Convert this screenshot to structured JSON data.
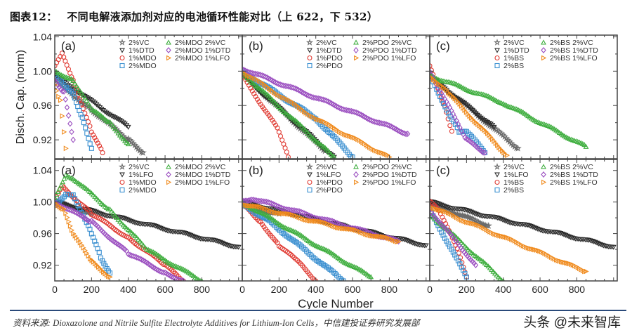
{
  "title": {
    "label": "图表12：",
    "text": "不同电解液添加剂对应的电池循环性能对比（上 622，下 532）"
  },
  "source": "资料来源: Dioxazolone and Nitrile Sulfite Electrolyte Additives for Lithium-Ion Cells，中信建投证券研究发展部",
  "watermark": "头条 @未来智库",
  "colors": {
    "VC": "#6a6a6a",
    "DTD_LFO": "#2b2b2b",
    "one_pct": "#e03a32",
    "two_pct": "#3a8fd0",
    "plus_VC": "#3fae3f",
    "plus_DTD": "#9b4fc0",
    "plus_LFO": "#f08a1c"
  },
  "chart_data": [
    {
      "type": "scatter",
      "panel": "(a)",
      "row": "top",
      "ylabel": "Disch. Cap. (norm)",
      "xlim": [
        0,
        1020
      ],
      "ylim": [
        0.898,
        1.042
      ],
      "yticks": [
        "1.04",
        "1.00",
        "0.96",
        "0.92"
      ],
      "series": [
        {
          "name": "2%VC",
          "marker": "star",
          "color": "#6a6a6a",
          "points": [
            [
              0,
              0.99
            ],
            [
              200,
              0.955
            ],
            [
              400,
              0.92
            ],
            [
              480,
              0.905
            ]
          ]
        },
        {
          "name": "1%DTD",
          "marker": "tri-down",
          "color": "#2b2b2b",
          "points": [
            [
              0,
              0.995
            ],
            [
              400,
              0.935
            ]
          ]
        },
        {
          "name": "1%MDO",
          "marker": "circle",
          "color": "#e03a32",
          "points": [
            [
              0,
              1.005
            ],
            [
              40,
              1.02
            ],
            [
              100,
              0.99
            ],
            [
              200,
              0.93
            ],
            [
              260,
              0.905
            ]
          ]
        },
        {
          "name": "2%MDO",
          "marker": "square",
          "color": "#3a8fd0",
          "points": [
            [
              0,
              0.995
            ],
            [
              100,
              0.975
            ],
            [
              150,
              0.945
            ],
            [
              200,
              0.91
            ]
          ]
        },
        {
          "name": "2%MDO 2%VC",
          "marker": "tri-up",
          "color": "#3fae3f",
          "points": [
            [
              0,
              1.0
            ],
            [
              100,
              0.99
            ],
            [
              200,
              0.955
            ],
            [
              300,
              0.94
            ],
            [
              400,
              0.915
            ]
          ]
        },
        {
          "name": "2%MDO 1%DTD",
          "marker": "diamond",
          "color": "#9b4fc0",
          "points": [
            [
              0,
              0.99
            ],
            [
              50,
              0.975
            ],
            [
              100,
              0.92
            ]
          ]
        },
        {
          "name": "2%MDO 1%LFO",
          "marker": "tri-right",
          "color": "#f08a1c",
          "points": [
            [
              0,
              0.985
            ],
            [
              30,
              0.965
            ],
            [
              60,
              0.91
            ]
          ]
        }
      ]
    },
    {
      "type": "scatter",
      "panel": "(b)",
      "row": "top",
      "xlim": [
        0,
        1020
      ],
      "ylim": [
        0.898,
        1.042
      ],
      "series": [
        {
          "name": "2%VC",
          "marker": "star",
          "color": "#6a6a6a",
          "points": [
            [
              0,
              0.997
            ],
            [
              450,
              0.907
            ]
          ]
        },
        {
          "name": "1%DTD",
          "marker": "tri-down",
          "color": "#2b2b2b",
          "points": [
            [
              0,
              0.995
            ],
            [
              500,
              0.9
            ]
          ]
        },
        {
          "name": "1%PDO",
          "marker": "circle",
          "color": "#e03a32",
          "points": [
            [
              0,
              0.995
            ],
            [
              200,
              0.93
            ],
            [
              250,
              0.9
            ]
          ]
        },
        {
          "name": "2%PDO",
          "marker": "square",
          "color": "#3a8fd0",
          "points": [
            [
              0,
              1.0
            ],
            [
              400,
              0.945
            ],
            [
              600,
              0.9
            ]
          ]
        },
        {
          "name": "2%PDO 2%VC",
          "marker": "tri-up",
          "color": "#3fae3f",
          "points": [
            [
              0,
              0.998
            ],
            [
              450,
              0.91
            ],
            [
              500,
              0.9
            ]
          ]
        },
        {
          "name": "2%PDO 1%DTD",
          "marker": "diamond",
          "color": "#9b4fc0",
          "points": [
            [
              0,
              1.003
            ],
            [
              900,
              0.927
            ]
          ]
        },
        {
          "name": "2%PDO 1%LFO",
          "marker": "tri-right",
          "color": "#f08a1c",
          "points": [
            [
              0,
              1.0
            ],
            [
              400,
              0.945
            ],
            [
              800,
              0.9
            ]
          ]
        }
      ]
    },
    {
      "type": "scatter",
      "panel": "(c)",
      "row": "top",
      "xlim": [
        0,
        1020
      ],
      "ylim": [
        0.898,
        1.042
      ],
      "series": [
        {
          "name": "2%VC",
          "marker": "star",
          "color": "#6a6a6a",
          "points": [
            [
              0,
              0.995
            ],
            [
              480,
              0.91
            ]
          ]
        },
        {
          "name": "1%DTD",
          "marker": "tri-down",
          "color": "#2b2b2b",
          "points": [
            [
              0,
              0.993
            ],
            [
              350,
              0.935
            ]
          ]
        },
        {
          "name": "1%BS",
          "marker": "circle",
          "color": "#e03a32",
          "points": [
            [
              0,
              1.005
            ],
            [
              80,
              0.96
            ],
            [
              120,
              0.93
            ]
          ]
        },
        {
          "name": "2%BS",
          "marker": "square",
          "color": "#3a8fd0",
          "points": [
            [
              0,
              0.995
            ],
            [
              130,
              0.94
            ],
            [
              160,
              0.93
            ],
            [
              200,
              0.93
            ],
            [
              300,
              0.905
            ]
          ]
        },
        {
          "name": "2%BS 2%VC",
          "marker": "tri-up",
          "color": "#3fae3f",
          "points": [
            [
              0,
              0.995
            ],
            [
              400,
              0.963
            ],
            [
              850,
              0.912
            ]
          ]
        },
        {
          "name": "2%BS 1%DTD",
          "marker": "diamond",
          "color": "#9b4fc0",
          "points": [
            [
              0,
              1.0
            ],
            [
              200,
              0.92
            ],
            [
              300,
              0.905
            ]
          ]
        },
        {
          "name": "2%BS 1%LFO",
          "marker": "tri-right",
          "color": "#f08a1c",
          "points": [
            [
              0,
              0.995
            ],
            [
              100,
              0.975
            ],
            [
              420,
              0.902
            ]
          ]
        }
      ]
    },
    {
      "type": "scatter",
      "panel": "(a)",
      "row": "bottom",
      "xlim": [
        0,
        1020
      ],
      "ylim": [
        0.9,
        1.054
      ],
      "yticks": [
        "1.04",
        "1.00",
        "0.96",
        "0.92"
      ],
      "xticks": [
        "0",
        "200",
        "400",
        "600",
        "800"
      ],
      "series": [
        {
          "name": "2%VC",
          "marker": "star",
          "color": "#6a6a6a",
          "points": [
            [
              0,
              1.0
            ],
            [
              200,
              0.985
            ]
          ]
        },
        {
          "name": "1%LFO",
          "marker": "tri-down",
          "color": "#2b2b2b",
          "points": [
            [
              0,
              1.0
            ],
            [
              1000,
              0.943
            ]
          ]
        },
        {
          "name": "1%MDO",
          "marker": "circle",
          "color": "#e03a32",
          "points": [
            [
              0,
              1.0
            ],
            [
              40,
              1.02
            ],
            [
              200,
              0.985
            ],
            [
              400,
              0.955
            ],
            [
              600,
              0.92
            ],
            [
              700,
              0.9
            ]
          ]
        },
        {
          "name": "2%MDO",
          "marker": "square",
          "color": "#3a8fd0",
          "points": [
            [
              0,
              0.995
            ],
            [
              60,
              1.01
            ],
            [
              100,
              1.01
            ],
            [
              200,
              0.96
            ],
            [
              250,
              0.93
            ],
            [
              300,
              0.91
            ]
          ]
        },
        {
          "name": "2%MDO 2%VC",
          "marker": "tri-up",
          "color": "#3fae3f",
          "points": [
            [
              0,
              1.005
            ],
            [
              60,
              1.035
            ],
            [
              100,
              1.03
            ],
            [
              300,
              0.99
            ],
            [
              500,
              0.94
            ],
            [
              800,
              0.9
            ]
          ]
        },
        {
          "name": "2%MDO 1%DTD",
          "marker": "diamond",
          "color": "#9b4fc0",
          "points": [
            [
              0,
              1.0
            ],
            [
              200,
              0.975
            ],
            [
              400,
              0.935
            ],
            [
              600,
              0.91
            ],
            [
              700,
              0.9
            ]
          ]
        },
        {
          "name": "2%MDO 1%LFO",
          "marker": "tri-right",
          "color": "#f08a1c",
          "points": [
            [
              0,
              1.0
            ],
            [
              50,
              0.99
            ],
            [
              100,
              0.96
            ],
            [
              200,
              0.925
            ],
            [
              300,
              0.905
            ]
          ]
        }
      ]
    },
    {
      "type": "scatter",
      "panel": "(b)",
      "row": "bottom",
      "xlim": [
        0,
        1020
      ],
      "ylim": [
        0.9,
        1.054
      ],
      "xticks": [
        "0",
        "200",
        "400",
        "600",
        "800"
      ],
      "series": [
        {
          "name": "2%VC",
          "marker": "star",
          "color": "#6a6a6a",
          "points": [
            [
              0,
              0.995
            ],
            [
              200,
              0.985
            ]
          ]
        },
        {
          "name": "1%LFO",
          "marker": "tri-down",
          "color": "#2b2b2b",
          "points": [
            [
              0,
              1.0
            ],
            [
              1000,
              0.945
            ]
          ]
        },
        {
          "name": "1%PDO",
          "marker": "circle",
          "color": "#e03a32",
          "points": [
            [
              0,
              0.998
            ],
            [
              100,
              0.975
            ],
            [
              200,
              0.945
            ],
            [
              300,
              0.925
            ],
            [
              400,
              0.9
            ]
          ]
        },
        {
          "name": "2%PDO",
          "marker": "square",
          "color": "#3a8fd0",
          "points": [
            [
              0,
              0.998
            ],
            [
              150,
              0.975
            ],
            [
              550,
              0.9
            ]
          ]
        },
        {
          "name": "2%PDO 2%VC",
          "marker": "tri-up",
          "color": "#3fae3f",
          "points": [
            [
              0,
              1.0
            ],
            [
              700,
              0.905
            ]
          ]
        },
        {
          "name": "2%PDO 1%DTD",
          "marker": "diamond",
          "color": "#9b4fc0",
          "points": [
            [
              0,
              1.002
            ],
            [
              60,
              1.004
            ],
            [
              850,
              0.95
            ]
          ]
        },
        {
          "name": "2%PDO 1%LFO",
          "marker": "tri-right",
          "color": "#f08a1c",
          "points": [
            [
              0,
              0.998
            ],
            [
              850,
              0.95
            ]
          ]
        }
      ]
    },
    {
      "type": "scatter",
      "panel": "(c)",
      "row": "bottom",
      "xlim": [
        0,
        1020
      ],
      "ylim": [
        0.9,
        1.054
      ],
      "xticks": [
        "0",
        "200",
        "400",
        "600",
        "800"
      ],
      "series": [
        {
          "name": "2%VC",
          "marker": "star",
          "color": "#6a6a6a",
          "points": [
            [
              0,
              0.998
            ],
            [
              320,
              0.97
            ]
          ]
        },
        {
          "name": "1%LFO",
          "marker": "tri-down",
          "color": "#2b2b2b",
          "points": [
            [
              0,
              1.0
            ],
            [
              1000,
              0.943
            ]
          ]
        },
        {
          "name": "1%BS",
          "marker": "circle",
          "color": "#e03a32",
          "points": [
            [
              0,
              1.0
            ],
            [
              50,
              0.99
            ],
            [
              150,
              0.94
            ],
            [
              200,
              0.905
            ]
          ]
        },
        {
          "name": "2%BS",
          "marker": "square",
          "color": "#3a8fd0",
          "points": [
            [
              0,
              0.99
            ],
            [
              200,
              0.905
            ]
          ]
        },
        {
          "name": "2%BS 2%VC",
          "marker": "tri-up",
          "color": "#3fae3f",
          "points": [
            [
              0,
              0.985
            ],
            [
              400,
              0.9
            ]
          ]
        },
        {
          "name": "2%BS 1%DTD",
          "marker": "diamond",
          "color": "#9b4fc0",
          "points": [
            [
              0,
              0.99
            ],
            [
              250,
              0.92
            ]
          ]
        },
        {
          "name": "2%BS 1%LFO",
          "marker": "tri-right",
          "color": "#f08a1c",
          "points": [
            [
              0,
              0.995
            ],
            [
              850,
              0.912
            ]
          ]
        }
      ]
    }
  ],
  "xlabel": "Cycle Number"
}
